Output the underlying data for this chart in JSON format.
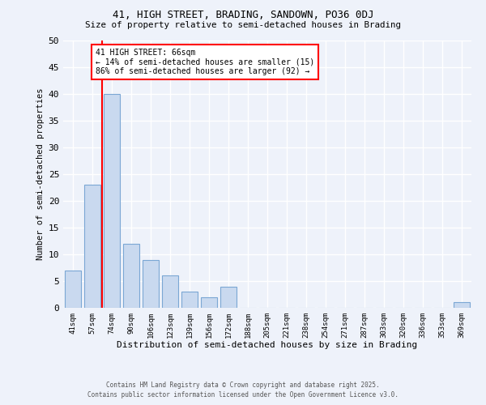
{
  "title": "41, HIGH STREET, BRADING, SANDOWN, PO36 0DJ",
  "subtitle": "Size of property relative to semi-detached houses in Brading",
  "xlabel": "Distribution of semi-detached houses by size in Brading",
  "ylabel": "Number of semi-detached properties",
  "bar_labels": [
    "41sqm",
    "57sqm",
    "74sqm",
    "90sqm",
    "106sqm",
    "123sqm",
    "139sqm",
    "156sqm",
    "172sqm",
    "188sqm",
    "205sqm",
    "221sqm",
    "238sqm",
    "254sqm",
    "271sqm",
    "287sqm",
    "303sqm",
    "320sqm",
    "336sqm",
    "353sqm",
    "369sqm"
  ],
  "bar_values": [
    7,
    23,
    40,
    12,
    9,
    6,
    3,
    2,
    4,
    0,
    0,
    0,
    0,
    0,
    0,
    0,
    0,
    0,
    0,
    0,
    1
  ],
  "bar_color": "#c9d9ef",
  "bar_edge_color": "#7ba7d4",
  "vline_x": 1.5,
  "vline_color": "red",
  "annotation_title": "41 HIGH STREET: 66sqm",
  "annotation_line1": "← 14% of semi-detached houses are smaller (15)",
  "annotation_line2": "86% of semi-detached houses are larger (92) →",
  "annotation_box_facecolor": "white",
  "annotation_box_edgecolor": "red",
  "ylim": [
    0,
    50
  ],
  "yticks": [
    0,
    5,
    10,
    15,
    20,
    25,
    30,
    35,
    40,
    45,
    50
  ],
  "background_color": "#eef2fa",
  "grid_color": "white",
  "footer_line1": "Contains HM Land Registry data © Crown copyright and database right 2025.",
  "footer_line2": "Contains public sector information licensed under the Open Government Licence v3.0."
}
